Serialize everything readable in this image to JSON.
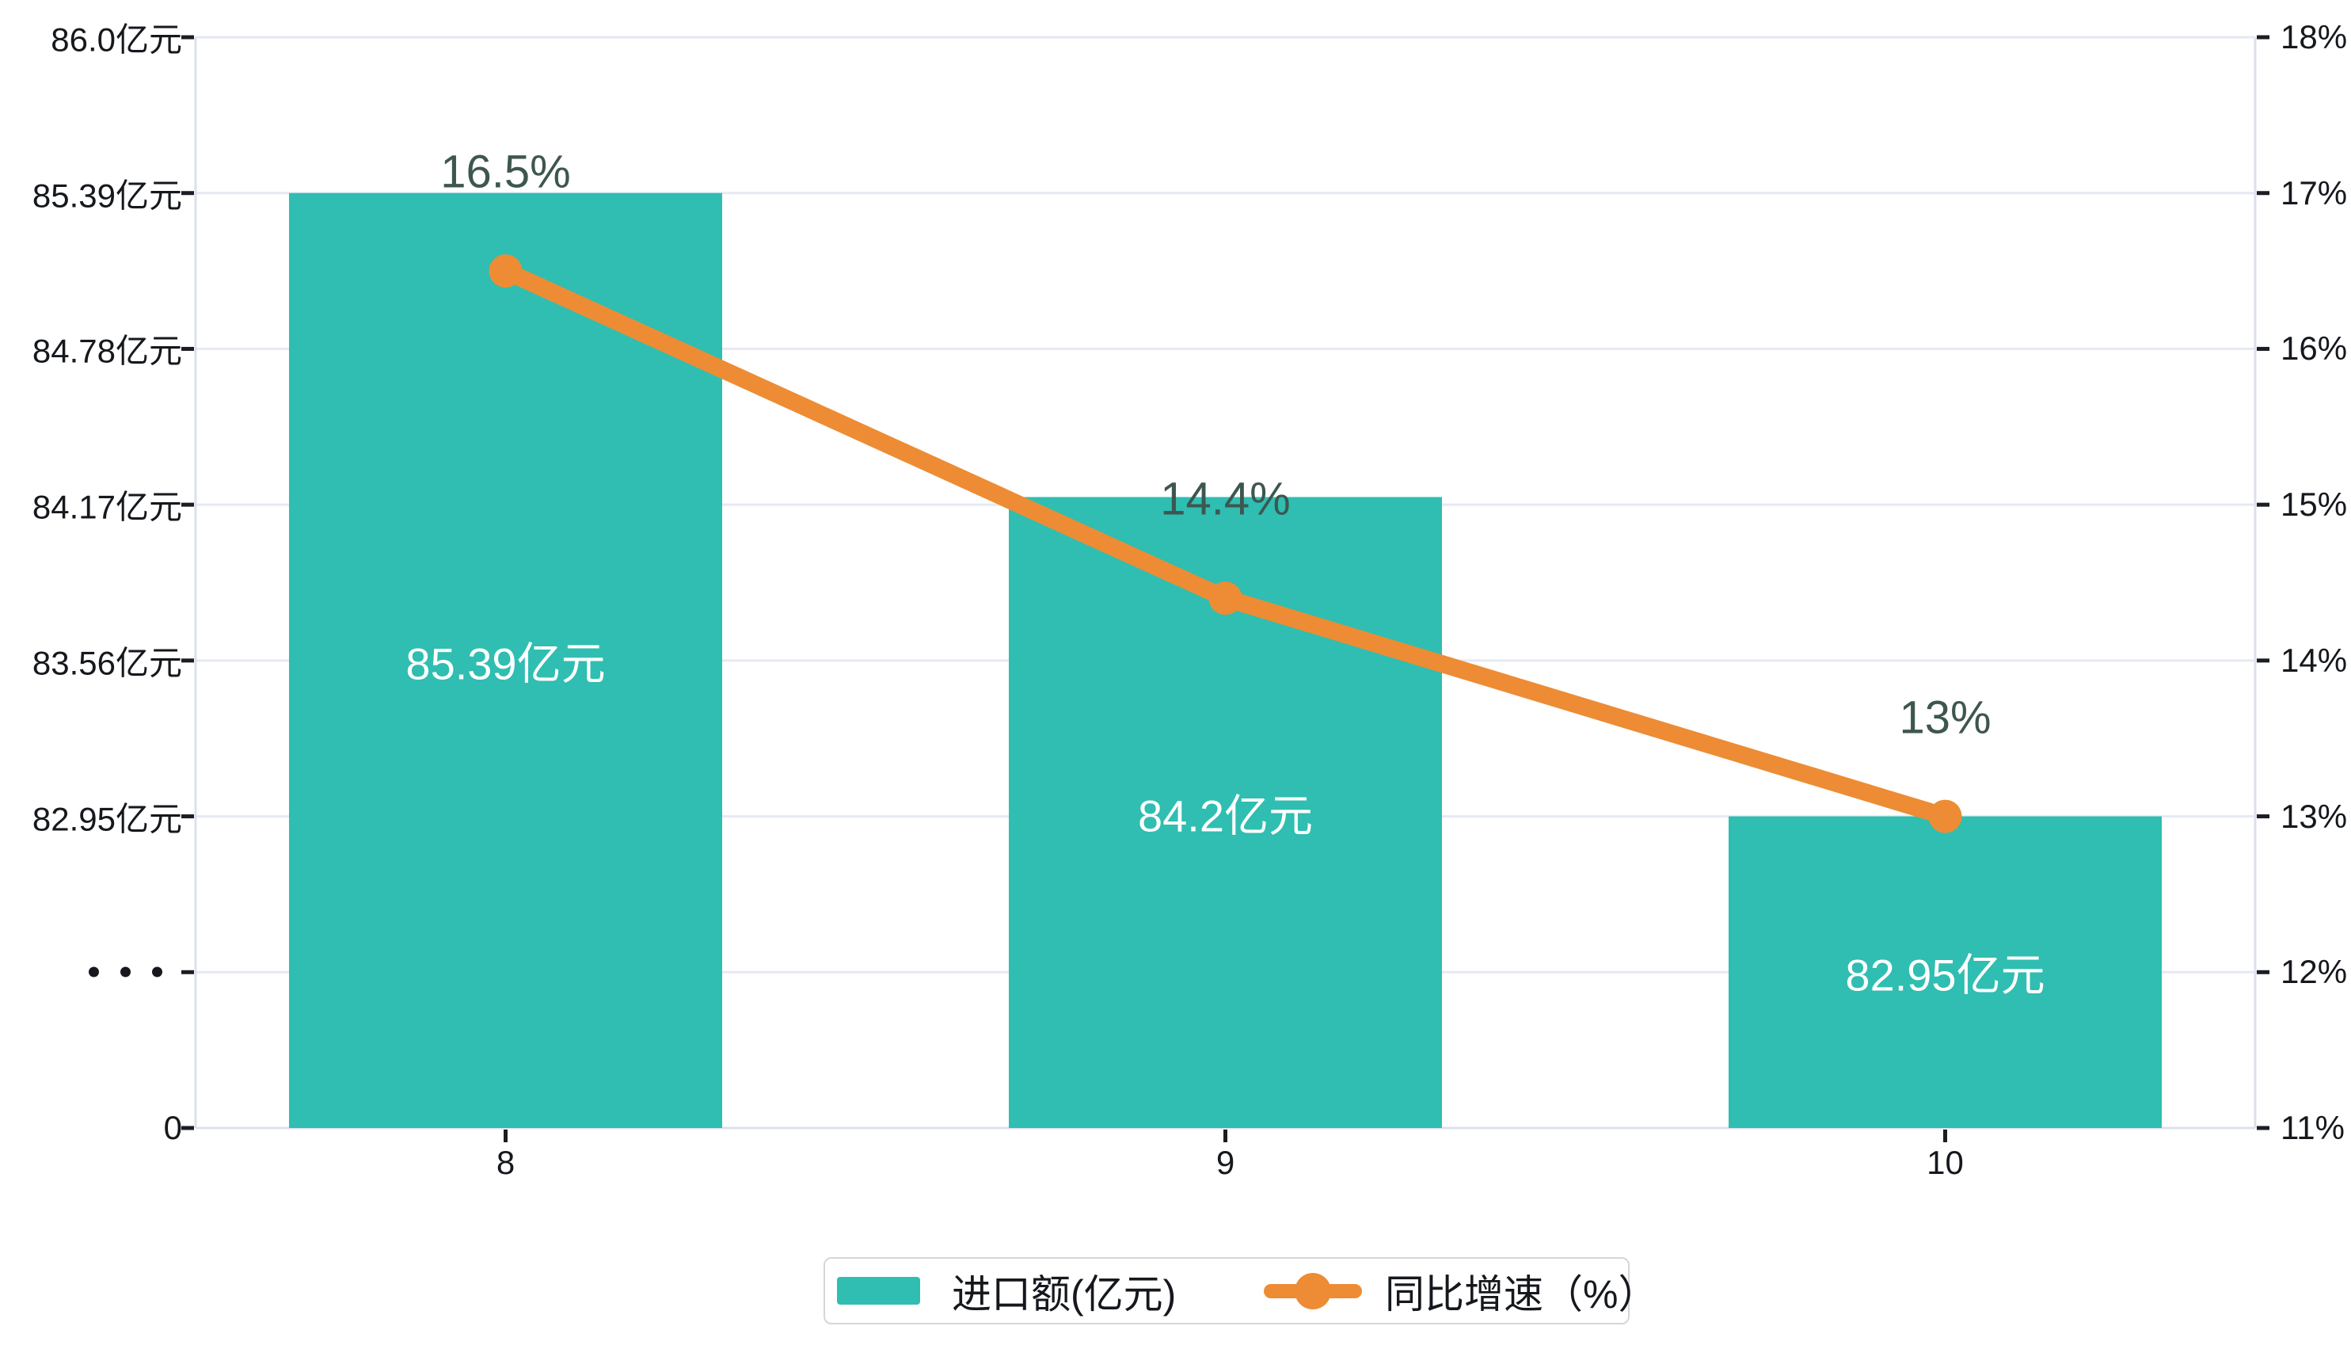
{
  "chart_data": {
    "type": "bar",
    "subtype": "bar-line-combo",
    "categories": [
      "8",
      "9",
      "10"
    ],
    "series": [
      {
        "name": "进口额(亿元)",
        "type": "bar",
        "unit": "亿元",
        "values": [
          85.39,
          84.2,
          82.95
        ],
        "labels": [
          "85.39亿元",
          "84.2亿元",
          "82.95亿元"
        ],
        "color": "#2fbeb1",
        "axis": "left"
      },
      {
        "name": "同比增速（%）",
        "type": "line",
        "unit": "%",
        "values": [
          16.5,
          14.4,
          13
        ],
        "labels": [
          "16.5%",
          "14.4%",
          "13%"
        ],
        "color": "#ed8c34",
        "axis": "right"
      }
    ],
    "left_axis": {
      "labels": [
        "86.0亿元",
        "85.39亿元",
        "84.78亿元",
        "84.17亿元",
        "83.56亿元",
        "82.95亿元",
        "···",
        "0"
      ],
      "tick_values": [
        86.0,
        85.39,
        84.78,
        84.17,
        83.56,
        82.95,
        null,
        0
      ],
      "break_symbol": "···",
      "broken_axis": true
    },
    "right_axis": {
      "labels": [
        "18%",
        "17%",
        "16%",
        "15%",
        "14%",
        "13%",
        "12%",
        "11%"
      ],
      "min": 11,
      "max": 18,
      "step": 1
    },
    "x_axis": {
      "labels": [
        "8",
        "9",
        "10"
      ]
    },
    "grid": true,
    "legend_position": "bottom",
    "legend": {
      "items": [
        {
          "label": "进口额(亿元)",
          "marker": "bar-swatch"
        },
        {
          "label": "同比增速（%）",
          "marker": "line-with-dot"
        }
      ]
    }
  },
  "colors": {
    "bar": "#2fbeb1",
    "line": "#ed8c34",
    "point_label": "#3e5650",
    "axis_text": "#15181d",
    "gridline": "#e6e9f3",
    "axis_border": "#dce0ec",
    "bar_label_text": "#ffffff",
    "legend_border": "#d6d6d6",
    "background": "#ffffff"
  }
}
